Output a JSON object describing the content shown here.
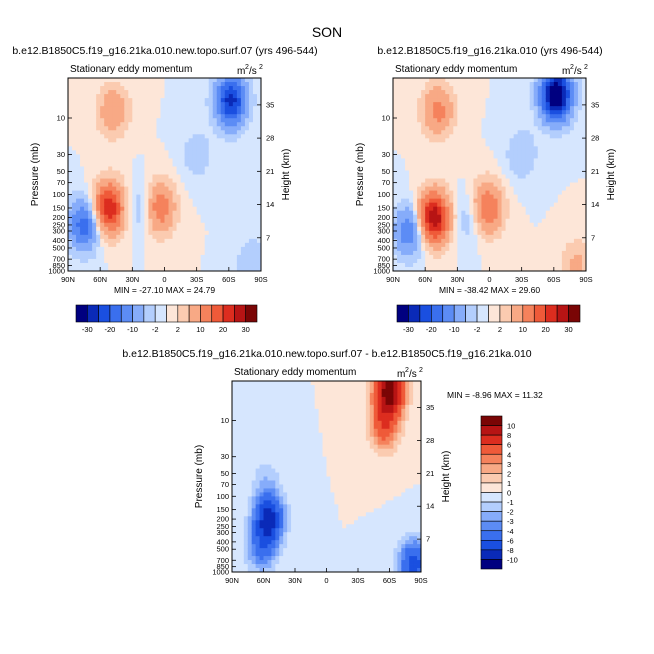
{
  "chart_data": {
    "type": "heatmap",
    "figure_title": "SON",
    "panels": [
      {
        "id": "new_topo",
        "case_title": "b.e12.B1850C5.f19_g16.21ka.010.new.topo.surf.07 (yrs 496-544)",
        "variable": "Stationary eddy momentum",
        "units_base": "m",
        "units_exp": "2",
        "units_den": "/s",
        "units_den_exp": "2",
        "stats": "MIN = -27.10   MAX =  24.79",
        "xlabel": "",
        "ylabel": "Pressure (mb)",
        "ylabel_right": "Height (km)",
        "x_ticks": [
          "90N",
          "60N",
          "30N",
          "0",
          "30S",
          "60S",
          "90S"
        ],
        "y_ticks": [
          "10",
          "30",
          "50",
          "70",
          "100",
          "150",
          "200",
          "250",
          "300",
          "400",
          "500",
          "700",
          "850",
          "1000"
        ],
        "y_ticks_right": [
          "35",
          "28",
          "21",
          "14",
          "7"
        ],
        "xlim": [
          90,
          -90
        ],
        "ylim_mb": [
          1000,
          3
        ],
        "color_levels": [
          -30,
          -25,
          -20,
          -15,
          -10,
          -5,
          -2,
          0,
          2,
          5,
          10,
          15,
          20,
          25,
          30
        ],
        "colorbar_labels": [
          "-30",
          "-20",
          "-10",
          "-2",
          "2",
          "10",
          "20",
          "30"
        ],
        "features": [
          {
            "lat": 52,
            "p": 150,
            "amp": 24.79
          },
          {
            "lat": 75,
            "p": 250,
            "amp": -18
          },
          {
            "lat": 48,
            "p": 8,
            "amp": 9
          },
          {
            "lat": 5,
            "p": 150,
            "amp": 15
          },
          {
            "lat": -62,
            "p": 6,
            "amp": -27.1
          },
          {
            "lat": -30,
            "p": 30,
            "amp": -4
          },
          {
            "lat": 20,
            "p": 150,
            "amp": -6
          },
          {
            "lat": -82,
            "p": 800,
            "amp": -5
          }
        ]
      },
      {
        "id": "control",
        "case_title": "b.e12.B1850C5.f19_g16.21ka.010 (yrs 496-544)",
        "variable": "Stationary eddy momentum",
        "units_base": "m",
        "units_exp": "2",
        "units_den": "/s",
        "units_den_exp": "2",
        "stats": "MIN = -38.42   MAX =  29.60",
        "xlabel": "",
        "ylabel": "Pressure (mb)",
        "ylabel_right": "Height (km)",
        "x_ticks": [
          "90N",
          "60N",
          "30N",
          "0",
          "30S",
          "60S",
          "90S"
        ],
        "y_ticks": [
          "10",
          "30",
          "50",
          "70",
          "100",
          "150",
          "200",
          "250",
          "300",
          "400",
          "500",
          "700",
          "850",
          "1000"
        ],
        "y_ticks_right": [
          "35",
          "28",
          "21",
          "14",
          "7"
        ],
        "xlim": [
          90,
          -90
        ],
        "ylim_mb": [
          1000,
          3
        ],
        "color_levels": [
          -30,
          -25,
          -20,
          -15,
          -10,
          -5,
          -2,
          0,
          2,
          5,
          10,
          15,
          20,
          25,
          30
        ],
        "colorbar_labels": [
          "-30",
          "-20",
          "-10",
          "-2",
          "2",
          "10",
          "20",
          "30"
        ],
        "features": [
          {
            "lat": 52,
            "p": 200,
            "amp": 29.6
          },
          {
            "lat": 75,
            "p": 300,
            "amp": -14
          },
          {
            "lat": 48,
            "p": 8,
            "amp": 12
          },
          {
            "lat": 2,
            "p": 150,
            "amp": 16
          },
          {
            "lat": -62,
            "p": 5,
            "amp": -38.42
          },
          {
            "lat": -30,
            "p": 30,
            "amp": -5
          },
          {
            "lat": 18,
            "p": 200,
            "amp": -5
          },
          {
            "lat": -82,
            "p": 850,
            "amp": 6
          }
        ]
      },
      {
        "id": "difference",
        "case_title": "b.e12.B1850C5.f19_g16.21ka.010.new.topo.surf.07 - b.e12.B1850C5.f19_g16.21ka.010",
        "variable": "Stationary eddy momentum",
        "units_base": "m",
        "units_exp": "2",
        "units_den": "/s",
        "units_den_exp": "2",
        "stats": "MIN = -8.96   MAX = 11.32",
        "xlabel": "",
        "ylabel": "Pressure (mb)",
        "ylabel_right": "Height (km)",
        "x_ticks": [
          "90N",
          "60N",
          "30N",
          "0",
          "30S",
          "60S",
          "90S"
        ],
        "y_ticks": [
          "10",
          "30",
          "50",
          "70",
          "100",
          "150",
          "200",
          "250",
          "300",
          "400",
          "500",
          "700",
          "850",
          "1000"
        ],
        "y_ticks_right": [
          "35",
          "28",
          "21",
          "14",
          "7"
        ],
        "xlim": [
          90,
          -90
        ],
        "ylim_mb": [
          1000,
          3
        ],
        "color_levels": [
          -10,
          -8,
          -6,
          -4,
          -3,
          -2,
          -1,
          0,
          1,
          2,
          3,
          4,
          6,
          8,
          10
        ],
        "colorbar_labels": [
          "10",
          "8",
          "6",
          "4",
          "3",
          "2",
          "1",
          "0",
          "-1",
          "-2",
          "-3",
          "-4",
          "-6",
          "-8",
          "-10"
        ],
        "features": [
          {
            "lat": -60,
            "p": 4,
            "amp": 11.32
          },
          {
            "lat": -55,
            "p": 12,
            "amp": 5
          },
          {
            "lat": 55,
            "p": 200,
            "amp": -8.96
          },
          {
            "lat": 62,
            "p": 500,
            "amp": -4
          },
          {
            "lat": 58,
            "p": 60,
            "amp": -1.5
          },
          {
            "lat": -83,
            "p": 800,
            "amp": -7
          }
        ]
      }
    ]
  },
  "colors": {
    "negative": [
      "#000080",
      "#0a2ab8",
      "#1a4fe0",
      "#3a6fee",
      "#5c8cf5",
      "#86acfa",
      "#b3cefd",
      "#d6e6fe"
    ],
    "positive": [
      "#fde6d8",
      "#fbcbb0",
      "#f8a985",
      "#f5825c",
      "#ef5a39",
      "#dc2d1f",
      "#b71414",
      "#7a0505"
    ]
  }
}
